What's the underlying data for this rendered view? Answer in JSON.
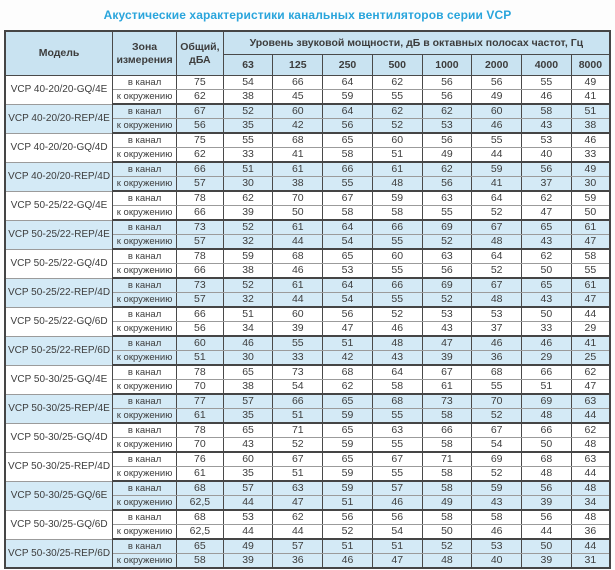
{
  "title": "Акустические характеристики канальных вентиляторов  серии VCP",
  "table": {
    "headers": {
      "model": "Модель",
      "zone": "Зона измерения",
      "total": "Общий, дБА",
      "spectrum": "Уровень звуковой мощности, дБ в октавных полосах частот, Гц",
      "frequencies": [
        "63",
        "125",
        "250",
        "500",
        "1000",
        "2000",
        "4000",
        "8000"
      ]
    },
    "zone_labels": {
      "duct": "в канал",
      "ambient": "к окружению"
    },
    "rows": [
      {
        "model": "VCP 40-20/20-GQ/4E",
        "highlight": false,
        "duct": {
          "total": "75",
          "bands": [
            "54",
            "66",
            "64",
            "62",
            "56",
            "56",
            "55",
            "49"
          ]
        },
        "ambient": {
          "total": "62",
          "bands": [
            "38",
            "45",
            "59",
            "55",
            "56",
            "49",
            "46",
            "41"
          ]
        }
      },
      {
        "model": "VCP 40-20/20-REP/4E",
        "highlight": true,
        "duct": {
          "total": "67",
          "bands": [
            "52",
            "60",
            "64",
            "62",
            "62",
            "60",
            "58",
            "51"
          ]
        },
        "ambient": {
          "total": "56",
          "bands": [
            "35",
            "42",
            "56",
            "52",
            "53",
            "46",
            "43",
            "38"
          ]
        }
      },
      {
        "model": "VCP 40-20/20-GQ/4D",
        "highlight": false,
        "duct": {
          "total": "75",
          "bands": [
            "55",
            "68",
            "65",
            "60",
            "56",
            "55",
            "53",
            "46"
          ]
        },
        "ambient": {
          "total": "62",
          "bands": [
            "33",
            "41",
            "58",
            "51",
            "49",
            "44",
            "40",
            "33"
          ]
        }
      },
      {
        "model": "VCP 40-20/20-REP/4D",
        "highlight": true,
        "duct": {
          "total": "66",
          "bands": [
            "51",
            "61",
            "66",
            "61",
            "62",
            "59",
            "56",
            "49"
          ]
        },
        "ambient": {
          "total": "57",
          "bands": [
            "30",
            "38",
            "55",
            "48",
            "56",
            "41",
            "37",
            "30"
          ]
        }
      },
      {
        "model": "VCP 50-25/22-GQ/4E",
        "highlight": false,
        "duct": {
          "total": "78",
          "bands": [
            "62",
            "70",
            "67",
            "59",
            "63",
            "64",
            "62",
            "59"
          ]
        },
        "ambient": {
          "total": "66",
          "bands": [
            "39",
            "50",
            "58",
            "58",
            "55",
            "52",
            "47",
            "50"
          ]
        }
      },
      {
        "model": "VCP 50-25/22-REP/4E",
        "highlight": true,
        "duct": {
          "total": "73",
          "bands": [
            "52",
            "61",
            "64",
            "66",
            "69",
            "67",
            "65",
            "61"
          ]
        },
        "ambient": {
          "total": "57",
          "bands": [
            "32",
            "44",
            "54",
            "55",
            "52",
            "48",
            "43",
            "47"
          ]
        }
      },
      {
        "model": "VCP 50-25/22-GQ/4D",
        "highlight": false,
        "duct": {
          "total": "78",
          "bands": [
            "59",
            "68",
            "65",
            "60",
            "63",
            "64",
            "62",
            "58"
          ]
        },
        "ambient": {
          "total": "66",
          "bands": [
            "38",
            "46",
            "53",
            "55",
            "56",
            "52",
            "50",
            "55"
          ]
        }
      },
      {
        "model": "VCP 50-25/22-REP/4D",
        "highlight": true,
        "duct": {
          "total": "73",
          "bands": [
            "52",
            "61",
            "64",
            "66",
            "69",
            "67",
            "65",
            "61"
          ]
        },
        "ambient": {
          "total": "57",
          "bands": [
            "32",
            "44",
            "54",
            "55",
            "52",
            "48",
            "43",
            "47"
          ]
        }
      },
      {
        "model": "VCP 50-25/22-GQ/6D",
        "highlight": false,
        "duct": {
          "total": "66",
          "bands": [
            "51",
            "60",
            "56",
            "52",
            "53",
            "53",
            "50",
            "44"
          ]
        },
        "ambient": {
          "total": "56",
          "bands": [
            "34",
            "39",
            "47",
            "46",
            "43",
            "37",
            "33",
            "29"
          ]
        }
      },
      {
        "model": "VCP 50-25/22-REP/6D",
        "highlight": true,
        "duct": {
          "total": "60",
          "bands": [
            "46",
            "55",
            "51",
            "48",
            "47",
            "46",
            "46",
            "41"
          ]
        },
        "ambient": {
          "total": "51",
          "bands": [
            "30",
            "33",
            "42",
            "43",
            "39",
            "36",
            "29",
            "25"
          ]
        }
      },
      {
        "model": "VCP 50-30/25-GQ/4E",
        "highlight": false,
        "duct": {
          "total": "78",
          "bands": [
            "65",
            "73",
            "68",
            "64",
            "67",
            "68",
            "66",
            "62"
          ]
        },
        "ambient": {
          "total": "70",
          "bands": [
            "38",
            "54",
            "62",
            "58",
            "61",
            "55",
            "51",
            "47"
          ]
        }
      },
      {
        "model": "VCP 50-30/25-REP/4E",
        "highlight": true,
        "duct": {
          "total": "77",
          "bands": [
            "57",
            "66",
            "65",
            "68",
            "73",
            "70",
            "69",
            "63"
          ]
        },
        "ambient": {
          "total": "61",
          "bands": [
            "35",
            "51",
            "59",
            "55",
            "58",
            "52",
            "48",
            "44"
          ]
        }
      },
      {
        "model": "VCP 50-30/25-GQ/4D",
        "highlight": false,
        "duct": {
          "total": "78",
          "bands": [
            "65",
            "71",
            "65",
            "63",
            "66",
            "67",
            "66",
            "62"
          ]
        },
        "ambient": {
          "total": "70",
          "bands": [
            "43",
            "52",
            "59",
            "55",
            "58",
            "54",
            "50",
            "48"
          ]
        }
      },
      {
        "model": "VCP 50-30/25-REP/4D",
        "highlight": false,
        "duct": {
          "total": "76",
          "bands": [
            "60",
            "67",
            "65",
            "67",
            "71",
            "69",
            "68",
            "63"
          ]
        },
        "ambient": {
          "total": "61",
          "bands": [
            "35",
            "51",
            "59",
            "55",
            "58",
            "52",
            "48",
            "44"
          ]
        }
      },
      {
        "model": "VCP 50-30/25-GQ/6E",
        "highlight": true,
        "duct": {
          "total": "68",
          "bands": [
            "57",
            "63",
            "59",
            "57",
            "58",
            "59",
            "56",
            "48"
          ]
        },
        "ambient": {
          "total": "62,5",
          "bands": [
            "44",
            "47",
            "51",
            "46",
            "49",
            "43",
            "39",
            "34"
          ]
        }
      },
      {
        "model": "VCP 50-30/25-GQ/6D",
        "highlight": false,
        "duct": {
          "total": "68",
          "bands": [
            "53",
            "62",
            "56",
            "56",
            "58",
            "58",
            "56",
            "48"
          ]
        },
        "ambient": {
          "total": "62,5",
          "bands": [
            "44",
            "44",
            "52",
            "54",
            "50",
            "46",
            "44",
            "36"
          ]
        }
      },
      {
        "model": "VCP 50-30/25-REP/6D",
        "highlight": true,
        "duct": {
          "total": "65",
          "bands": [
            "49",
            "57",
            "51",
            "51",
            "52",
            "53",
            "50",
            "44"
          ]
        },
        "ambient": {
          "total": "58",
          "bands": [
            "39",
            "36",
            "46",
            "47",
            "48",
            "40",
            "39",
            "31"
          ]
        }
      }
    ]
  },
  "colors": {
    "title": "#2aa5dc",
    "header_bg": "#c9e3f1",
    "highlight_row_bg": "#d4eaf6",
    "border_dark": "#4a4a4a",
    "border_light": "#9b9b9b",
    "text": "#3d3d3d"
  }
}
